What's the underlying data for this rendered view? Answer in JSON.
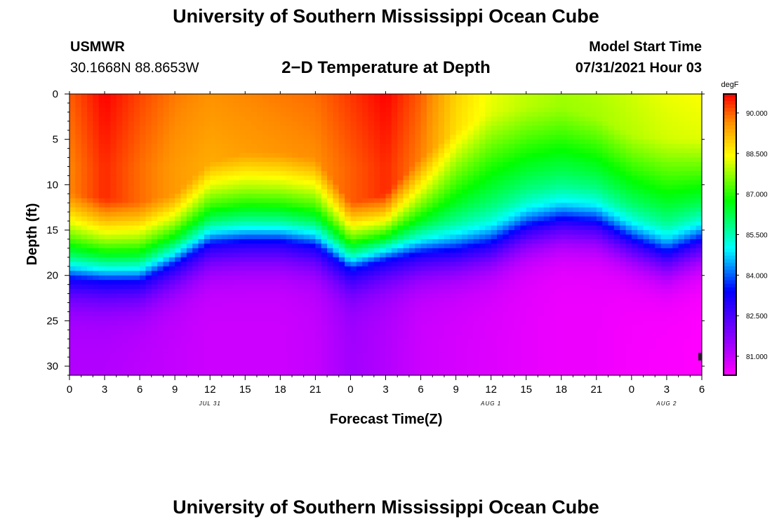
{
  "header": {
    "title": "University of Southern Mississippi Ocean Cube",
    "station": "USMWR",
    "coordinates": "30.1668N  88.8653W",
    "subtitle": "2−D Temperature at Depth",
    "model_start_label": "Model Start Time",
    "model_start_value": "07/31/2021 Hour 03"
  },
  "footer": {
    "title": "University of Southern Mississippi Ocean Cube"
  },
  "chart_data": {
    "type": "heatmap",
    "title": "2-D Temperature at Depth",
    "xlabel": "Forecast Time(Z)",
    "ylabel": "Depth (ft)",
    "x_ticks": [
      "0",
      "3",
      "6",
      "9",
      "12",
      "15",
      "18",
      "21",
      "0",
      "3",
      "6",
      "9",
      "12",
      "15",
      "18",
      "21",
      "0",
      "3",
      "6"
    ],
    "x_range_hours": [
      0,
      54
    ],
    "date_labels": [
      {
        "text": "JUL 31",
        "hour": 12
      },
      {
        "text": "AUG 1",
        "hour": 36
      },
      {
        "text": "AUG 2",
        "hour": 51
      }
    ],
    "y_ticks": [
      0,
      5,
      10,
      15,
      20,
      25,
      30
    ],
    "ylim": [
      0,
      31
    ],
    "colorbar": {
      "unit": "degF",
      "min": 80.3,
      "max": 90.7,
      "tick_values": [
        90.0,
        88.5,
        87.0,
        85.5,
        84.0,
        82.5,
        81.0
      ],
      "tick_labels": [
        "90.000",
        "88.500",
        "87.000",
        "85.500",
        "84.000",
        "82.500",
        "81.000"
      ]
    },
    "profile": {
      "hours": [
        0,
        3,
        6,
        9,
        12,
        15,
        18,
        21,
        24,
        27,
        30,
        33,
        36,
        39,
        42,
        45,
        48,
        51,
        54
      ],
      "surface_temp_degF": [
        89.7,
        90.4,
        89.9,
        89.5,
        89.3,
        89.4,
        89.5,
        89.6,
        90.0,
        90.4,
        89.7,
        88.6,
        88.0,
        87.7,
        87.5,
        87.6,
        87.8,
        88.0,
        88.1
      ],
      "mixed_layer_depth_ft": [
        11.0,
        11.5,
        12.0,
        11.0,
        7.5,
        6.5,
        6.5,
        7.0,
        12.0,
        11.0,
        7.0,
        4.0,
        2.0,
        1.5,
        1.5,
        2.5,
        4.5,
        5.0,
        5.0
      ],
      "thermocline_mid_ft": [
        20.5,
        20.8,
        20.8,
        19.0,
        16.8,
        16.5,
        16.5,
        17.0,
        19.5,
        18.5,
        17.8,
        17.5,
        16.8,
        15.0,
        14.2,
        14.5,
        16.5,
        18.0,
        16.5
      ],
      "bottom_temp_degF": [
        81.2,
        81.2,
        81.1,
        81.0,
        80.9,
        80.9,
        80.9,
        81.0,
        81.4,
        81.2,
        80.9,
        80.8,
        80.7,
        80.6,
        80.5,
        80.5,
        80.4,
        80.35,
        80.3
      ]
    }
  }
}
